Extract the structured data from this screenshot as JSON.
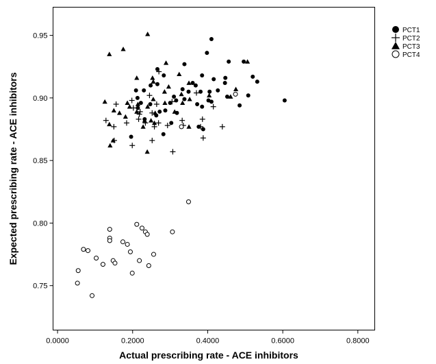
{
  "chart_data": {
    "type": "scatter",
    "title": "",
    "xlabel": "Actual prescribing rate - ACE inhibitors",
    "ylabel": "Expected prescribing rate - ACE inhibitors",
    "xlim": [
      -0.012,
      0.845
    ],
    "ylim": [
      0.7145,
      0.9725
    ],
    "xticks": [
      0.0,
      0.2,
      0.4,
      0.6,
      0.8
    ],
    "xtick_labels": [
      "0.0000",
      "0.2000",
      "0.4000",
      "0.6000",
      "0.8000"
    ],
    "yticks": [
      0.75,
      0.8,
      0.85,
      0.9,
      0.95
    ],
    "ytick_labels": [
      "0.75",
      "0.80",
      "0.85",
      "0.90",
      "0.95"
    ],
    "grid": false,
    "legend_position": "top-right, outside plot area",
    "series": [
      {
        "name": "PCT1",
        "marker": "filled-circle",
        "points": [
          [
            0.41,
            0.947
          ],
          [
            0.398,
            0.936
          ],
          [
            0.456,
            0.929
          ],
          [
            0.496,
            0.929
          ],
          [
            0.338,
            0.927
          ],
          [
            0.266,
            0.923
          ],
          [
            0.283,
            0.918
          ],
          [
            0.385,
            0.918
          ],
          [
            0.416,
            0.915
          ],
          [
            0.447,
            0.916
          ],
          [
            0.532,
            0.913
          ],
          [
            0.52,
            0.917
          ],
          [
            0.36,
            0.912
          ],
          [
            0.446,
            0.912
          ],
          [
            0.368,
            0.91
          ],
          [
            0.248,
            0.91
          ],
          [
            0.266,
            0.911
          ],
          [
            0.333,
            0.907
          ],
          [
            0.209,
            0.906
          ],
          [
            0.23,
            0.906
          ],
          [
            0.405,
            0.905
          ],
          [
            0.427,
            0.906
          ],
          [
            0.349,
            0.905
          ],
          [
            0.381,
            0.905
          ],
          [
            0.31,
            0.901
          ],
          [
            0.316,
            0.898
          ],
          [
            0.338,
            0.899
          ],
          [
            0.402,
            0.898
          ],
          [
            0.452,
            0.901
          ],
          [
            0.605,
            0.898
          ],
          [
            0.508,
            0.902
          ],
          [
            0.372,
            0.895
          ],
          [
            0.385,
            0.893
          ],
          [
            0.3,
            0.896
          ],
          [
            0.222,
            0.896
          ],
          [
            0.247,
            0.895
          ],
          [
            0.485,
            0.894
          ],
          [
            0.214,
            0.892
          ],
          [
            0.272,
            0.889
          ],
          [
            0.287,
            0.89
          ],
          [
            0.318,
            0.888
          ],
          [
            0.232,
            0.883
          ],
          [
            0.376,
            0.877
          ],
          [
            0.388,
            0.875
          ],
          [
            0.263,
            0.886
          ],
          [
            0.196,
            0.869
          ],
          [
            0.282,
            0.871
          ],
          [
            0.303,
            0.88
          ],
          [
            0.41,
            0.897
          ],
          [
            0.213,
            0.9
          ]
        ]
      },
      {
        "name": "PCT2",
        "marker": "plus",
        "points": [
          [
            0.27,
            0.921
          ],
          [
            0.245,
            0.902
          ],
          [
            0.198,
            0.898
          ],
          [
            0.202,
            0.892
          ],
          [
            0.156,
            0.895
          ],
          [
            0.22,
            0.889
          ],
          [
            0.305,
            0.897
          ],
          [
            0.264,
            0.895
          ],
          [
            0.252,
            0.888
          ],
          [
            0.234,
            0.88
          ],
          [
            0.184,
            0.88
          ],
          [
            0.15,
            0.877
          ],
          [
            0.258,
            0.877
          ],
          [
            0.269,
            0.88
          ],
          [
            0.218,
            0.887
          ],
          [
            0.151,
            0.866
          ],
          [
            0.252,
            0.866
          ],
          [
            0.307,
            0.857
          ],
          [
            0.199,
            0.862
          ],
          [
            0.129,
            0.882
          ],
          [
            0.335,
            0.878
          ],
          [
            0.381,
            0.877
          ],
          [
            0.388,
            0.868
          ],
          [
            0.386,
            0.883
          ],
          [
            0.415,
            0.893
          ],
          [
            0.439,
            0.877
          ],
          [
            0.332,
            0.882
          ],
          [
            0.37,
            0.904
          ],
          [
            0.293,
            0.878
          ],
          [
            0.216,
            0.883
          ]
        ]
      },
      {
        "name": "PCT3",
        "marker": "filled-triangle",
        "points": [
          [
            0.24,
            0.951
          ],
          [
            0.175,
            0.939
          ],
          [
            0.138,
            0.935
          ],
          [
            0.506,
            0.929
          ],
          [
            0.289,
            0.928
          ],
          [
            0.253,
            0.916
          ],
          [
            0.211,
            0.916
          ],
          [
            0.324,
            0.919
          ],
          [
            0.35,
            0.912
          ],
          [
            0.296,
            0.909
          ],
          [
            0.255,
            0.913
          ],
          [
            0.285,
            0.905
          ],
          [
            0.33,
            0.903
          ],
          [
            0.404,
            0.902
          ],
          [
            0.475,
            0.907
          ],
          [
            0.461,
            0.901
          ],
          [
            0.352,
            0.899
          ],
          [
            0.333,
            0.896
          ],
          [
            0.286,
            0.896
          ],
          [
            0.255,
            0.899
          ],
          [
            0.214,
            0.895
          ],
          [
            0.186,
            0.896
          ],
          [
            0.126,
            0.897
          ],
          [
            0.192,
            0.893
          ],
          [
            0.165,
            0.888
          ],
          [
            0.15,
            0.89
          ],
          [
            0.312,
            0.889
          ],
          [
            0.24,
            0.893
          ],
          [
            0.181,
            0.885
          ],
          [
            0.138,
            0.879
          ],
          [
            0.232,
            0.882
          ],
          [
            0.249,
            0.882
          ],
          [
            0.26,
            0.888
          ],
          [
            0.35,
            0.877
          ],
          [
            0.148,
            0.866
          ],
          [
            0.14,
            0.862
          ],
          [
            0.258,
            0.88
          ],
          [
            0.239,
            0.857
          ],
          [
            0.228,
            0.877
          ],
          [
            0.211,
            0.889
          ]
        ]
      },
      {
        "name": "PCT4",
        "marker": "open-circle",
        "points": [
          [
            0.349,
            0.817
          ],
          [
            0.211,
            0.799
          ],
          [
            0.225,
            0.796
          ],
          [
            0.139,
            0.795
          ],
          [
            0.234,
            0.793
          ],
          [
            0.239,
            0.791
          ],
          [
            0.306,
            0.793
          ],
          [
            0.139,
            0.788
          ],
          [
            0.174,
            0.785
          ],
          [
            0.186,
            0.783
          ],
          [
            0.069,
            0.779
          ],
          [
            0.081,
            0.778
          ],
          [
            0.194,
            0.777
          ],
          [
            0.139,
            0.786
          ],
          [
            0.256,
            0.775
          ],
          [
            0.218,
            0.77
          ],
          [
            0.103,
            0.772
          ],
          [
            0.148,
            0.77
          ],
          [
            0.153,
            0.768
          ],
          [
            0.121,
            0.767
          ],
          [
            0.243,
            0.766
          ],
          [
            0.055,
            0.762
          ],
          [
            0.199,
            0.76
          ],
          [
            0.053,
            0.752
          ],
          [
            0.092,
            0.742
          ],
          [
            0.33,
            0.877
          ],
          [
            0.474,
            0.903
          ]
        ]
      }
    ]
  }
}
